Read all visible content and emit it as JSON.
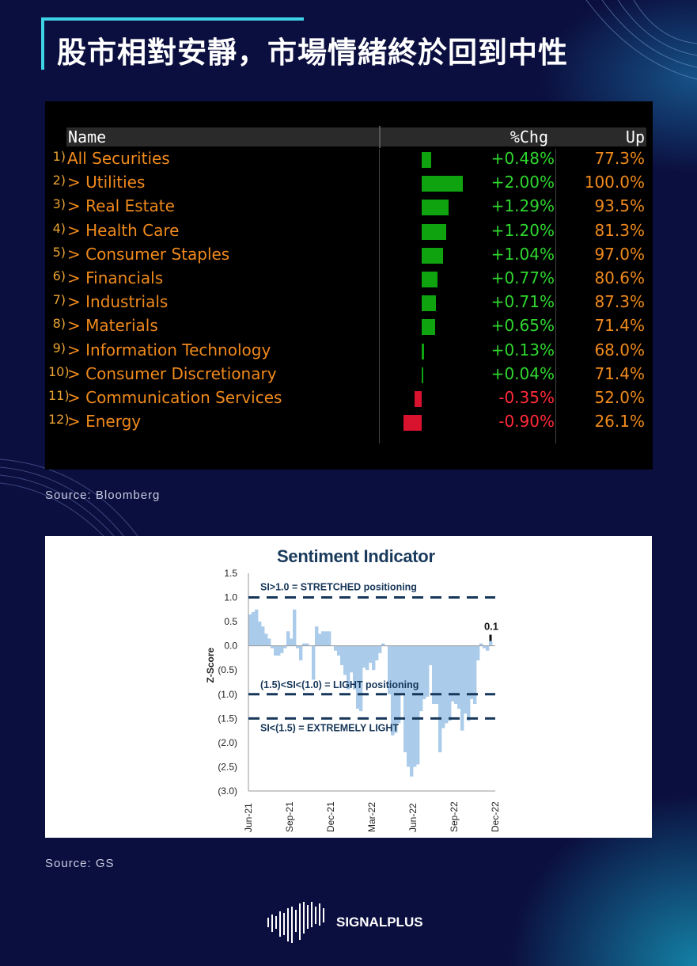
{
  "title": "股市相對安靜，市場情緒終於回到中性",
  "table": {
    "headers": {
      "name": "Name",
      "chg": "%Chg",
      "up": "Up"
    },
    "rows": [
      {
        "num": "1)",
        "name": "All Securities",
        "chg": "+0.48%",
        "chg_value": 0.48,
        "up": "77.3%"
      },
      {
        "num": "2)",
        "name": "> Utilities",
        "chg": "+2.00%",
        "chg_value": 2.0,
        "up": "100.0%"
      },
      {
        "num": "3)",
        "name": "> Real Estate",
        "chg": "+1.29%",
        "chg_value": 1.29,
        "up": "93.5%"
      },
      {
        "num": "4)",
        "name": "> Health Care",
        "chg": "+1.20%",
        "chg_value": 1.2,
        "up": "81.3%"
      },
      {
        "num": "5)",
        "name": "> Consumer Staples",
        "chg": "+1.04%",
        "chg_value": 1.04,
        "up": "97.0%"
      },
      {
        "num": "6)",
        "name": "> Financials",
        "chg": "+0.77%",
        "chg_value": 0.77,
        "up": "80.6%"
      },
      {
        "num": "7)",
        "name": "> Industrials",
        "chg": "+0.71%",
        "chg_value": 0.71,
        "up": "87.3%"
      },
      {
        "num": "8)",
        "name": "> Materials",
        "chg": "+0.65%",
        "chg_value": 0.65,
        "up": "71.4%"
      },
      {
        "num": "9)",
        "name": "> Information Technology",
        "chg": "+0.13%",
        "chg_value": 0.13,
        "up": "68.0%"
      },
      {
        "num": "10)",
        "name": "> Consumer Discretionary",
        "chg": "+0.04%",
        "chg_value": 0.04,
        "up": "71.4%"
      },
      {
        "num": "11)",
        "name": "> Communication Services",
        "chg": "-0.35%",
        "chg_value": -0.35,
        "up": "52.0%"
      },
      {
        "num": "12)",
        "name": "> Energy",
        "chg": "-0.90%",
        "chg_value": -0.9,
        "up": "26.1%"
      }
    ],
    "colors": {
      "positive": "#0fa30f",
      "negative": "#d9122e"
    }
  },
  "source1": "Source:  Bloomberg",
  "source2": "Source:  GS",
  "logo": "SIGNALPLUS",
  "chart_data": {
    "type": "bar",
    "title": "Sentiment Indicator",
    "ylabel": "Z-Score",
    "ylim": [
      -3.0,
      1.5
    ],
    "yticks": [
      1.5,
      1.0,
      0.5,
      0.0,
      -0.5,
      -1.0,
      -1.5,
      -2.0,
      -2.5,
      -3.0
    ],
    "ytick_labels": [
      "1.5",
      "1.0",
      "0.5",
      "0.0",
      "(0.5)",
      "(1.0)",
      "(1.5)",
      "(2.0)",
      "(2.5)",
      "(3.0)"
    ],
    "xtick_labels": [
      "Jun-21",
      "Sep-21",
      "Dec-21",
      "Mar-22",
      "Jun-22",
      "Sep-22",
      "Dec-22"
    ],
    "xlim_weeks": [
      0,
      78
    ],
    "color": "#aacbea",
    "reference_lines": [
      {
        "y": 1.0,
        "label": "SI>1.0 = STRETCHED positioning"
      },
      {
        "y": -1.0,
        "label": "(1.5)<SI<(1.0) = LIGHT positioning"
      },
      {
        "y": -1.5,
        "label": "SI<(1.5) = EXTREMELY LIGHT"
      }
    ],
    "annotation": {
      "text": "0.1",
      "value": 0.1
    },
    "values": [
      0.65,
      0.7,
      0.75,
      0.5,
      0.4,
      0.25,
      0.15,
      -0.05,
      -0.2,
      -0.2,
      -0.15,
      -0.05,
      0.3,
      0.15,
      0.75,
      -0.05,
      -0.3,
      0.05,
      0.05,
      0,
      -0.7,
      0.4,
      0.25,
      0.3,
      0.3,
      0.3,
      0,
      -0.1,
      -0.2,
      -0.4,
      -0.6,
      -0.9,
      -0.55,
      -0.9,
      -1.3,
      -1.35,
      -0.45,
      -0.5,
      -0.35,
      -0.5,
      -0.3,
      -0.15,
      0.05,
      0,
      -1.0,
      -1.85,
      -1.8,
      -1.6,
      -1.0,
      -2.2,
      -2.5,
      -2.7,
      -2.5,
      -2.45,
      -1.35,
      -1.1,
      -1.05,
      -0.4,
      -1.2,
      -1.2,
      -2.2,
      -1.7,
      -1.6,
      -1.55,
      -1.15,
      -1.2,
      -1.3,
      -1.75,
      -1.4,
      -1.55,
      -1.1,
      -1.2,
      -0.3,
      0.05,
      -0.05,
      -0.1,
      0.1
    ]
  }
}
